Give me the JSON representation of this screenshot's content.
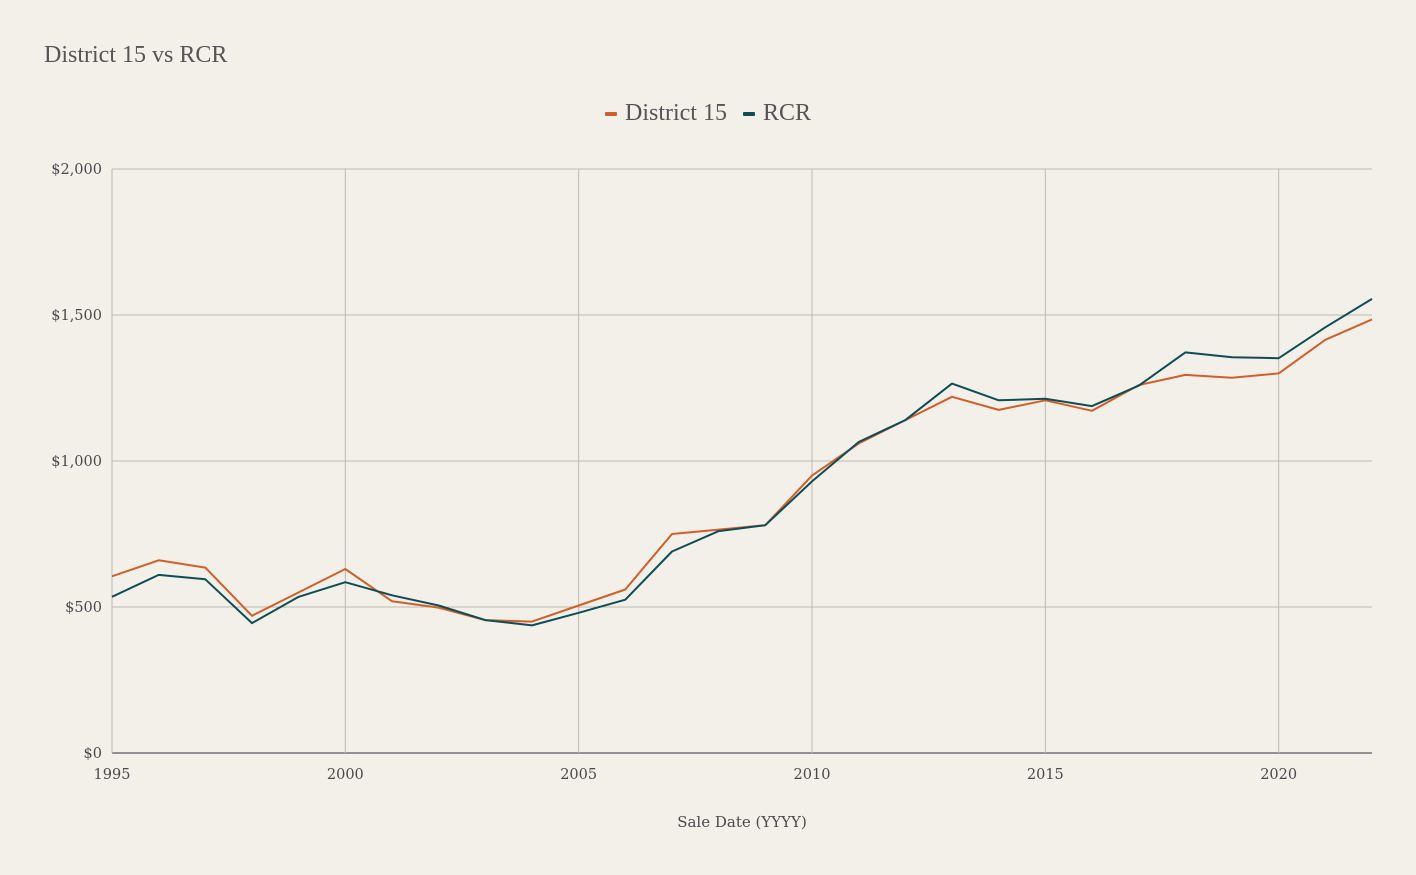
{
  "chart_data": {
    "type": "line",
    "title": "District 15 vs RCR",
    "xlabel": "Sale Date (YYYY)",
    "ylabel": "",
    "xlim": [
      1995,
      2022
    ],
    "ylim": [
      0,
      2000
    ],
    "x_ticks": [
      1995,
      2000,
      2005,
      2010,
      2015,
      2020
    ],
    "x_tick_labels": [
      "1995",
      "2000",
      "2005",
      "2010",
      "2015",
      "2020"
    ],
    "y_ticks": [
      0,
      500,
      1000,
      1500,
      2000
    ],
    "y_tick_labels": [
      "$0",
      "$500",
      "$1,000",
      "$1,500",
      "$2,000"
    ],
    "grid": true,
    "legend_position": "top-center",
    "x": [
      1995,
      1996,
      1997,
      1998,
      1999,
      2000,
      2001,
      2002,
      2003,
      2004,
      2005,
      2006,
      2007,
      2008,
      2009,
      2010,
      2011,
      2012,
      2013,
      2014,
      2015,
      2016,
      2017,
      2018,
      2019,
      2020,
      2021,
      2022
    ],
    "series": [
      {
        "name": "District 15",
        "color": "#d15f2c",
        "values": [
          605,
          660,
          635,
          470,
          550,
          630,
          520,
          498,
          455,
          450,
          505,
          560,
          750,
          765,
          780,
          950,
          1060,
          1140,
          1220,
          1175,
          1208,
          1172,
          1260,
          1295,
          1285,
          1300,
          1415,
          1485
        ]
      },
      {
        "name": "RCR",
        "color": "#0e4d55",
        "values": [
          535,
          610,
          595,
          445,
          535,
          585,
          540,
          505,
          455,
          437,
          480,
          525,
          690,
          760,
          780,
          930,
          1065,
          1140,
          1265,
          1208,
          1213,
          1188,
          1258,
          1372,
          1355,
          1352,
          1458,
          1555
        ]
      }
    ]
  }
}
